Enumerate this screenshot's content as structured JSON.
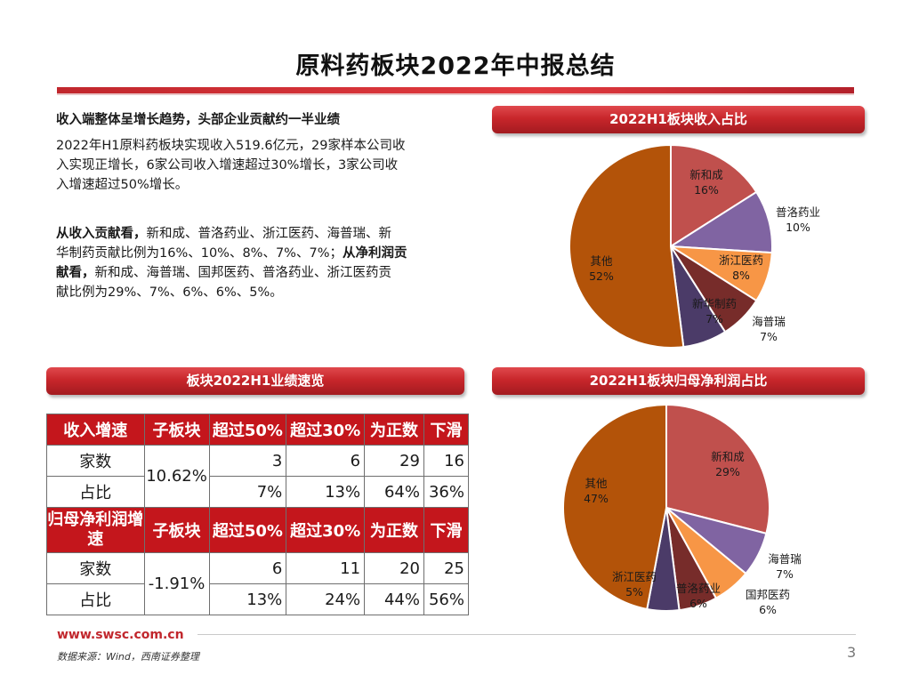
{
  "slide": {
    "title": "原料药板块2022年中报总结",
    "page_number": "3"
  },
  "summary": {
    "heading": "收入端整体呈增长趋势，头部企业贡献约一半业绩",
    "para1_line1": "2022年H1原料药板块实现收入519.6亿元，29家样本公司收",
    "para1_line2": "入实现正增长，6家公司收入增速超过30%增长，3家公司收",
    "para1_line3": "入增速超过50%增长。",
    "para2_bold1": "从收入贡献看，",
    "para2_text1": "新和成、普洛药业、浙江医药、海普瑞、新",
    "para2_text2": "华制药贡献比例为16%、10%、8%、7%、7%；",
    "para2_bold2": "从净利润贡",
    "para2_bold3": "献看，",
    "para2_text3": "新和成、海普瑞、国邦医药、普洛药业、浙江医药贡",
    "para2_text4": "献比例为29%、7%、6%、6%、5%。"
  },
  "ribbons": {
    "revenue_pie": "2022H1板块收入占比",
    "profit_pie": "2022H1板块归母净利润占比",
    "table": "板块2022H1业绩速览"
  },
  "table": {
    "revenue_header": [
      "收入增速",
      "子板块",
      "超过50%",
      "超过30%",
      "为正数",
      "下滑"
    ],
    "revenue_subsector": "10.62%",
    "revenue_rows": [
      {
        "label": "家数",
        "values": [
          "3",
          "6",
          "29",
          "16"
        ]
      },
      {
        "label": "占比",
        "values": [
          "7%",
          "13%",
          "64%",
          "36%"
        ]
      }
    ],
    "profit_header": [
      "归母净利润增速",
      "子板块",
      "超过50%",
      "超过30%",
      "为正数",
      "下滑"
    ],
    "profit_subsector": "-1.91%",
    "profit_rows": [
      {
        "label": "家数",
        "values": [
          "6",
          "11",
          "20",
          "25"
        ]
      },
      {
        "label": "占比",
        "values": [
          "13%",
          "24%",
          "44%",
          "56%"
        ]
      }
    ]
  },
  "chart_data": [
    {
      "type": "pie",
      "title": "2022H1板块收入占比",
      "categories": [
        "新和成",
        "普洛药业",
        "浙江医药",
        "海普瑞",
        "新华制药",
        "其他"
      ],
      "values": [
        16,
        10,
        8,
        7,
        7,
        52
      ],
      "labels": [
        "16%",
        "10%",
        "8%",
        "7%",
        "7%",
        "52%"
      ],
      "colors": [
        "#c0504d",
        "#8064a2",
        "#f79646",
        "#772c2a",
        "#4b3b68",
        "#b35309"
      ]
    },
    {
      "type": "pie",
      "title": "2022H1板块归母净利润占比",
      "categories": [
        "新和成",
        "海普瑞",
        "国邦医药",
        "普洛药业",
        "浙江医药",
        "其他"
      ],
      "values": [
        29,
        7,
        6,
        6,
        5,
        47
      ],
      "labels": [
        "29%",
        "7%",
        "6%",
        "6%",
        "5%",
        "47%"
      ],
      "colors": [
        "#c0504d",
        "#8064a2",
        "#f79646",
        "#772c2a",
        "#4b3b68",
        "#b35309"
      ]
    }
  ],
  "footer": {
    "url": "www.swsc.com.cn",
    "source": "数据来源：Wind，西南证券整理"
  }
}
